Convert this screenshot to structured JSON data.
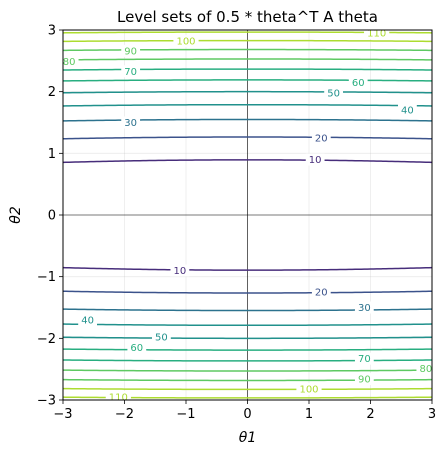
{
  "chart_data": {
    "type": "contour",
    "title": "Level sets of 0.5 * theta^T A theta",
    "xlabel": "θ1",
    "ylabel": "θ2",
    "xlim": [
      -3,
      3
    ],
    "ylim": [
      -3,
      3
    ],
    "xticks": [
      -3,
      -2,
      -1,
      0,
      1,
      2,
      3
    ],
    "yticks": [
      -3,
      -2,
      -1,
      0,
      1,
      2,
      3
    ],
    "grid": true,
    "reference_lines": {
      "x": 0,
      "y": 0
    },
    "function": {
      "a11": 0.2,
      "a22": 25
    },
    "levels": [
      10,
      20,
      30,
      40,
      50,
      60,
      70,
      80,
      90,
      100,
      110
    ],
    "colors": [
      "#472d7b",
      "#3b528b",
      "#2c728e",
      "#21918c",
      "#21918c",
      "#28ae80",
      "#28ae80",
      "#5ec962",
      "#5ec962",
      "#addc30",
      "#addc30"
    ],
    "inline_labels": [
      {
        "level": 10,
        "x": 1.1,
        "y": 0.9
      },
      {
        "level": 10,
        "x": -1.1,
        "y": -0.9
      },
      {
        "level": 20,
        "x": 1.2,
        "y": 1.25
      },
      {
        "level": 20,
        "x": 1.2,
        "y": -1.25
      },
      {
        "level": 30,
        "x": -1.9,
        "y": 1.5
      },
      {
        "level": 30,
        "x": 1.9,
        "y": -1.5
      },
      {
        "level": 40,
        "x": 2.6,
        "y": 1.7
      },
      {
        "level": 40,
        "x": -2.6,
        "y": -1.7
      },
      {
        "level": 50,
        "x": 1.4,
        "y": 1.98
      },
      {
        "level": 50,
        "x": -1.4,
        "y": -1.98
      },
      {
        "level": 60,
        "x": 1.8,
        "y": 2.15
      },
      {
        "level": 60,
        "x": -1.8,
        "y": -2.15
      },
      {
        "level": 70,
        "x": -1.9,
        "y": 2.33
      },
      {
        "level": 70,
        "x": 1.9,
        "y": -2.33
      },
      {
        "level": 80,
        "x": -2.9,
        "y": 2.49
      },
      {
        "level": 80,
        "x": 2.9,
        "y": -2.49
      },
      {
        "level": 90,
        "x": -1.9,
        "y": 2.66
      },
      {
        "level": 90,
        "x": 1.9,
        "y": -2.66
      },
      {
        "level": 100,
        "x": -1.0,
        "y": 2.82
      },
      {
        "level": 100,
        "x": 1.0,
        "y": -2.82
      },
      {
        "level": 110,
        "x": 2.1,
        "y": 2.95
      },
      {
        "level": 110,
        "x": -2.1,
        "y": -2.95
      }
    ]
  }
}
